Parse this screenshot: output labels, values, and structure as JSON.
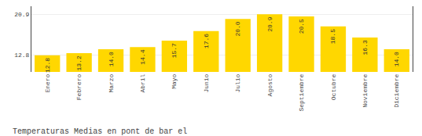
{
  "chart_data": {
    "type": "bar",
    "title": "Temperaturas Medias en pont de bar el",
    "categories": [
      "Enero",
      "Febrero",
      "Marzo",
      "Abril",
      "Mayo",
      "Junio",
      "Julio",
      "Agosto",
      "Septiembre",
      "Octubre",
      "Noviembre",
      "Diciembre"
    ],
    "values": [
      12.8,
      13.2,
      14.0,
      14.4,
      15.7,
      17.6,
      20.0,
      20.9,
      20.5,
      18.5,
      16.3,
      14.0
    ],
    "value_labels": [
      "12.8",
      "13.2",
      "14.0",
      "14.4",
      "15.7",
      "17.6",
      "20.0",
      "20.9",
      "20.5",
      "18.5",
      "16.3",
      "14.0"
    ],
    "data_labels": true,
    "color": "#FFD700",
    "ylim": [
      9.5,
      22.5
    ],
    "yticks": [
      12.8,
      20.9
    ],
    "grid": true
  }
}
